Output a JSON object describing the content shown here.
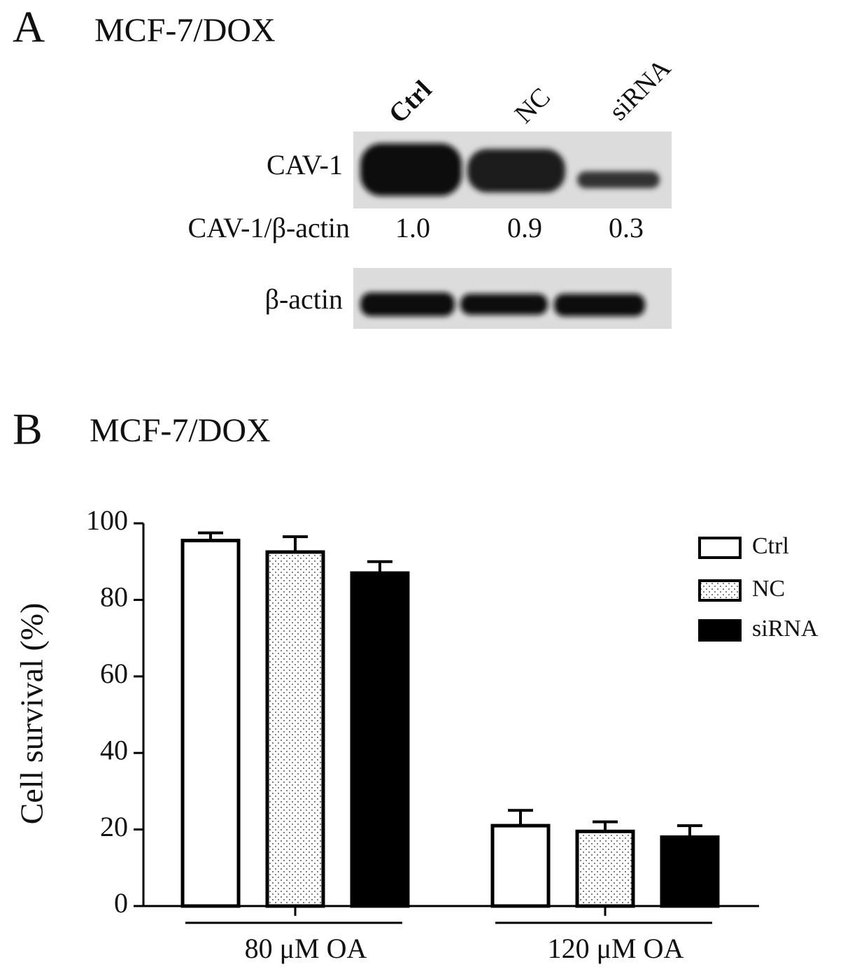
{
  "panel_a": {
    "label": "A",
    "title": "MCF-7/DOX",
    "lanes": [
      "Ctrl",
      "NC",
      "siRNA"
    ],
    "rows": [
      "CAV-1",
      "CAV-1/β-actin",
      "β-actin"
    ],
    "ratios": [
      "1.0",
      "0.9",
      "0.3"
    ]
  },
  "chart_data": {
    "type": "bar",
    "panel_label": "B",
    "title": "MCF-7/DOX",
    "y_label": "Cell survival (%)",
    "categories": [
      "80 μM OA",
      "120 μM OA"
    ],
    "series": [
      {
        "name": "Ctrl",
        "color": "#ffffff",
        "values": [
          95.5,
          21
        ],
        "errors": [
          2,
          4
        ]
      },
      {
        "name": "NC",
        "color": "#ffffff",
        "pattern": "dots",
        "values": [
          92.5,
          19.5
        ],
        "errors": [
          4,
          2.5
        ]
      },
      {
        "name": "siRNA",
        "color": "#000000",
        "values": [
          87,
          18
        ],
        "errors": [
          3,
          3
        ]
      }
    ],
    "ylim": [
      0,
      100
    ],
    "yticks": [
      0,
      20,
      40,
      60,
      80,
      100
    ],
    "legend": "upper right"
  }
}
